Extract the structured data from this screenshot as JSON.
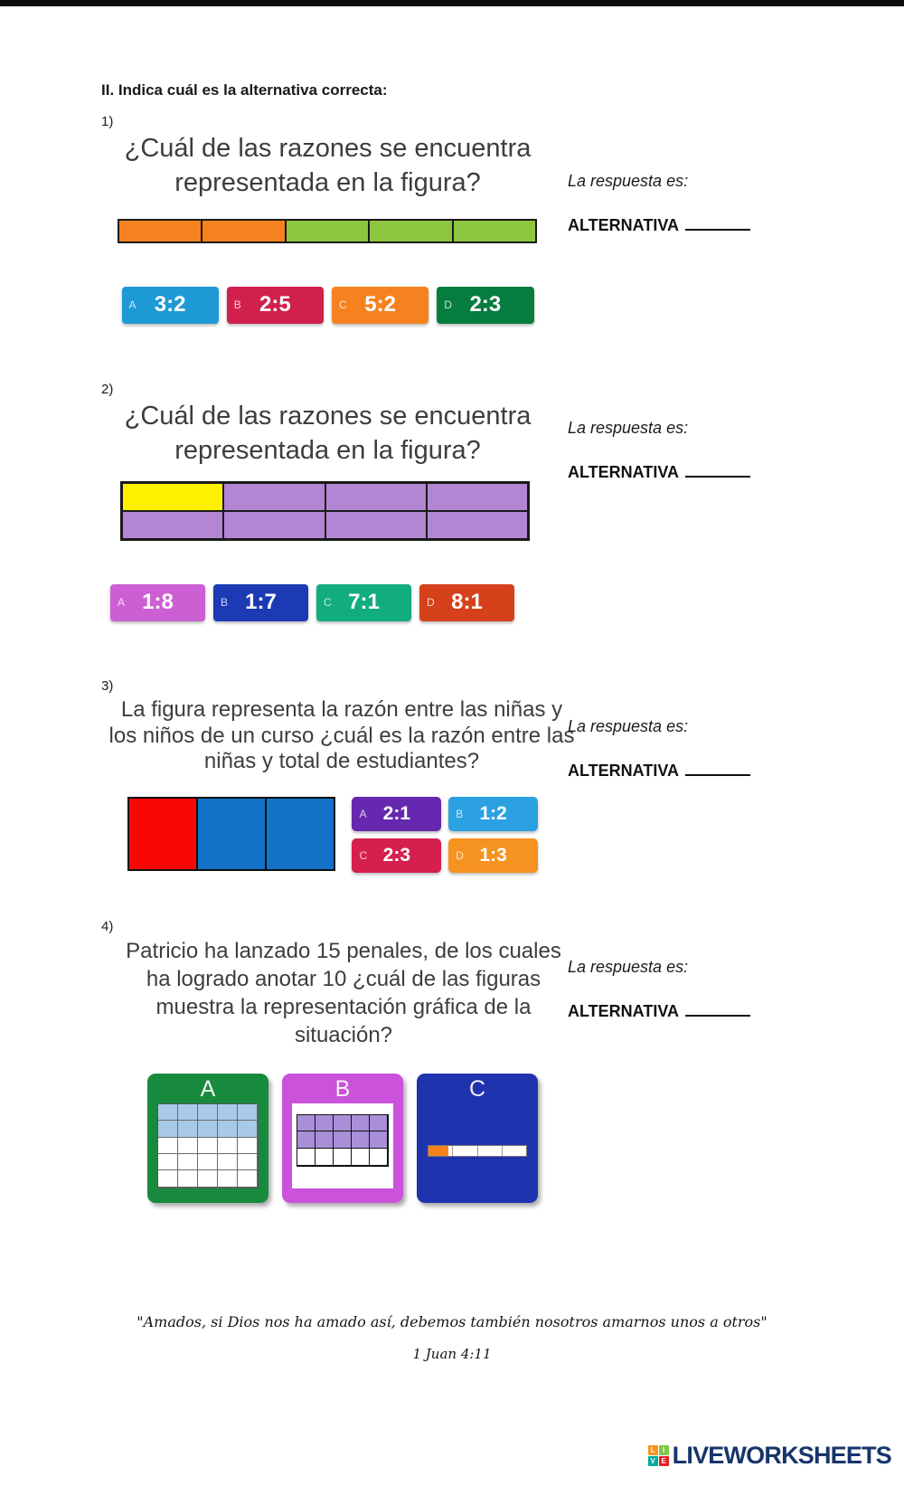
{
  "page": {
    "section_title": "II. Indica cuál es la alternativa correcta:",
    "answer_prompt": "La respuesta es:",
    "alternative_label": "ALTERNATIVA"
  },
  "questions": [
    {
      "number": "1)",
      "text": "¿Cuál de las razones se encuentra representada en la figura?",
      "figure": {
        "type": "bar",
        "description": "2 orange segments and 3 green segments",
        "segments": [
          "#F6821F",
          "#F6821F",
          "#8CC63E",
          "#8CC63E",
          "#8CC63E"
        ]
      },
      "options": [
        {
          "letter": "A",
          "value": "3:2",
          "color": "#1E9AD6"
        },
        {
          "letter": "B",
          "value": "2:5",
          "color": "#D2204C"
        },
        {
          "letter": "C",
          "value": "5:2",
          "color": "#F6821F"
        },
        {
          "letter": "D",
          "value": "2:3",
          "color": "#067D3F"
        }
      ]
    },
    {
      "number": "2)",
      "text": "¿Cuál de las razones se encuentra representada en la figura?",
      "figure": {
        "type": "grid",
        "description": "2x4 grid, 1 yellow cell and 7 purple cells",
        "cols": 4,
        "cells": [
          "#FFF000",
          "#B286D3",
          "#B286D3",
          "#B286D3",
          "#B286D3",
          "#B286D3",
          "#B286D3",
          "#B286D3"
        ]
      },
      "options": [
        {
          "letter": "A",
          "value": "1:8",
          "color": "#CB5FD3"
        },
        {
          "letter": "B",
          "value": "1:7",
          "color": "#1C3AB4"
        },
        {
          "letter": "C",
          "value": "7:1",
          "color": "#12AD7E"
        },
        {
          "letter": "D",
          "value": "8:1",
          "color": "#D4411B"
        }
      ]
    },
    {
      "number": "3)",
      "text": "La figura representa la razón entre las niñas y los niños de un curso ¿cuál es la razón entre las niñas y total de estudiantes?",
      "figure": {
        "type": "bar",
        "description": "1 red square and 2 blue squares",
        "segments": [
          "#F90606",
          "#1272C6",
          "#1272C6"
        ]
      },
      "options": [
        {
          "letter": "A",
          "value": "2:1",
          "color": "#6628AE"
        },
        {
          "letter": "B",
          "value": "1:2",
          "color": "#2BA1E2"
        },
        {
          "letter": "C",
          "value": "2:3",
          "color": "#D5204E"
        },
        {
          "letter": "D",
          "value": "1:3",
          "color": "#F6921F"
        }
      ]
    },
    {
      "number": "4)",
      "text": "Patricio ha lanzado 15 penales, de los cuales ha logrado anotar 10 ¿cuál de las figuras muestra la representación gráfica de la situación?",
      "cards": [
        {
          "letter": "A",
          "color": "#188A3E",
          "grid": {
            "cols": 5,
            "rows": 5,
            "filled": 10,
            "fill_color": "#A9C9E9"
          }
        },
        {
          "letter": "B",
          "color": "#CB52DB",
          "grid": {
            "cols": 5,
            "rows": 3,
            "filled": 10,
            "fill_color": "#A98FD8"
          }
        },
        {
          "letter": "C",
          "color": "#1E33AD",
          "bar": {
            "segments": 4,
            "fill_color": "#F6821F",
            "fill_percent": 20
          }
        }
      ]
    }
  ],
  "quote": {
    "text": "\"Amados, si Dios nos ha amado así, debemos también nosotros amarnos unos a otros\"",
    "reference": "1 Juan 4:11"
  },
  "footer": {
    "brand": "LIVEWORKSHEETS",
    "brand_color": "#17356B",
    "icon_letters": [
      "L",
      "I",
      "V",
      "E"
    ],
    "icon_colors": [
      "#F7941E",
      "#7AC943",
      "#00A99D",
      "#ED1C24"
    ]
  }
}
